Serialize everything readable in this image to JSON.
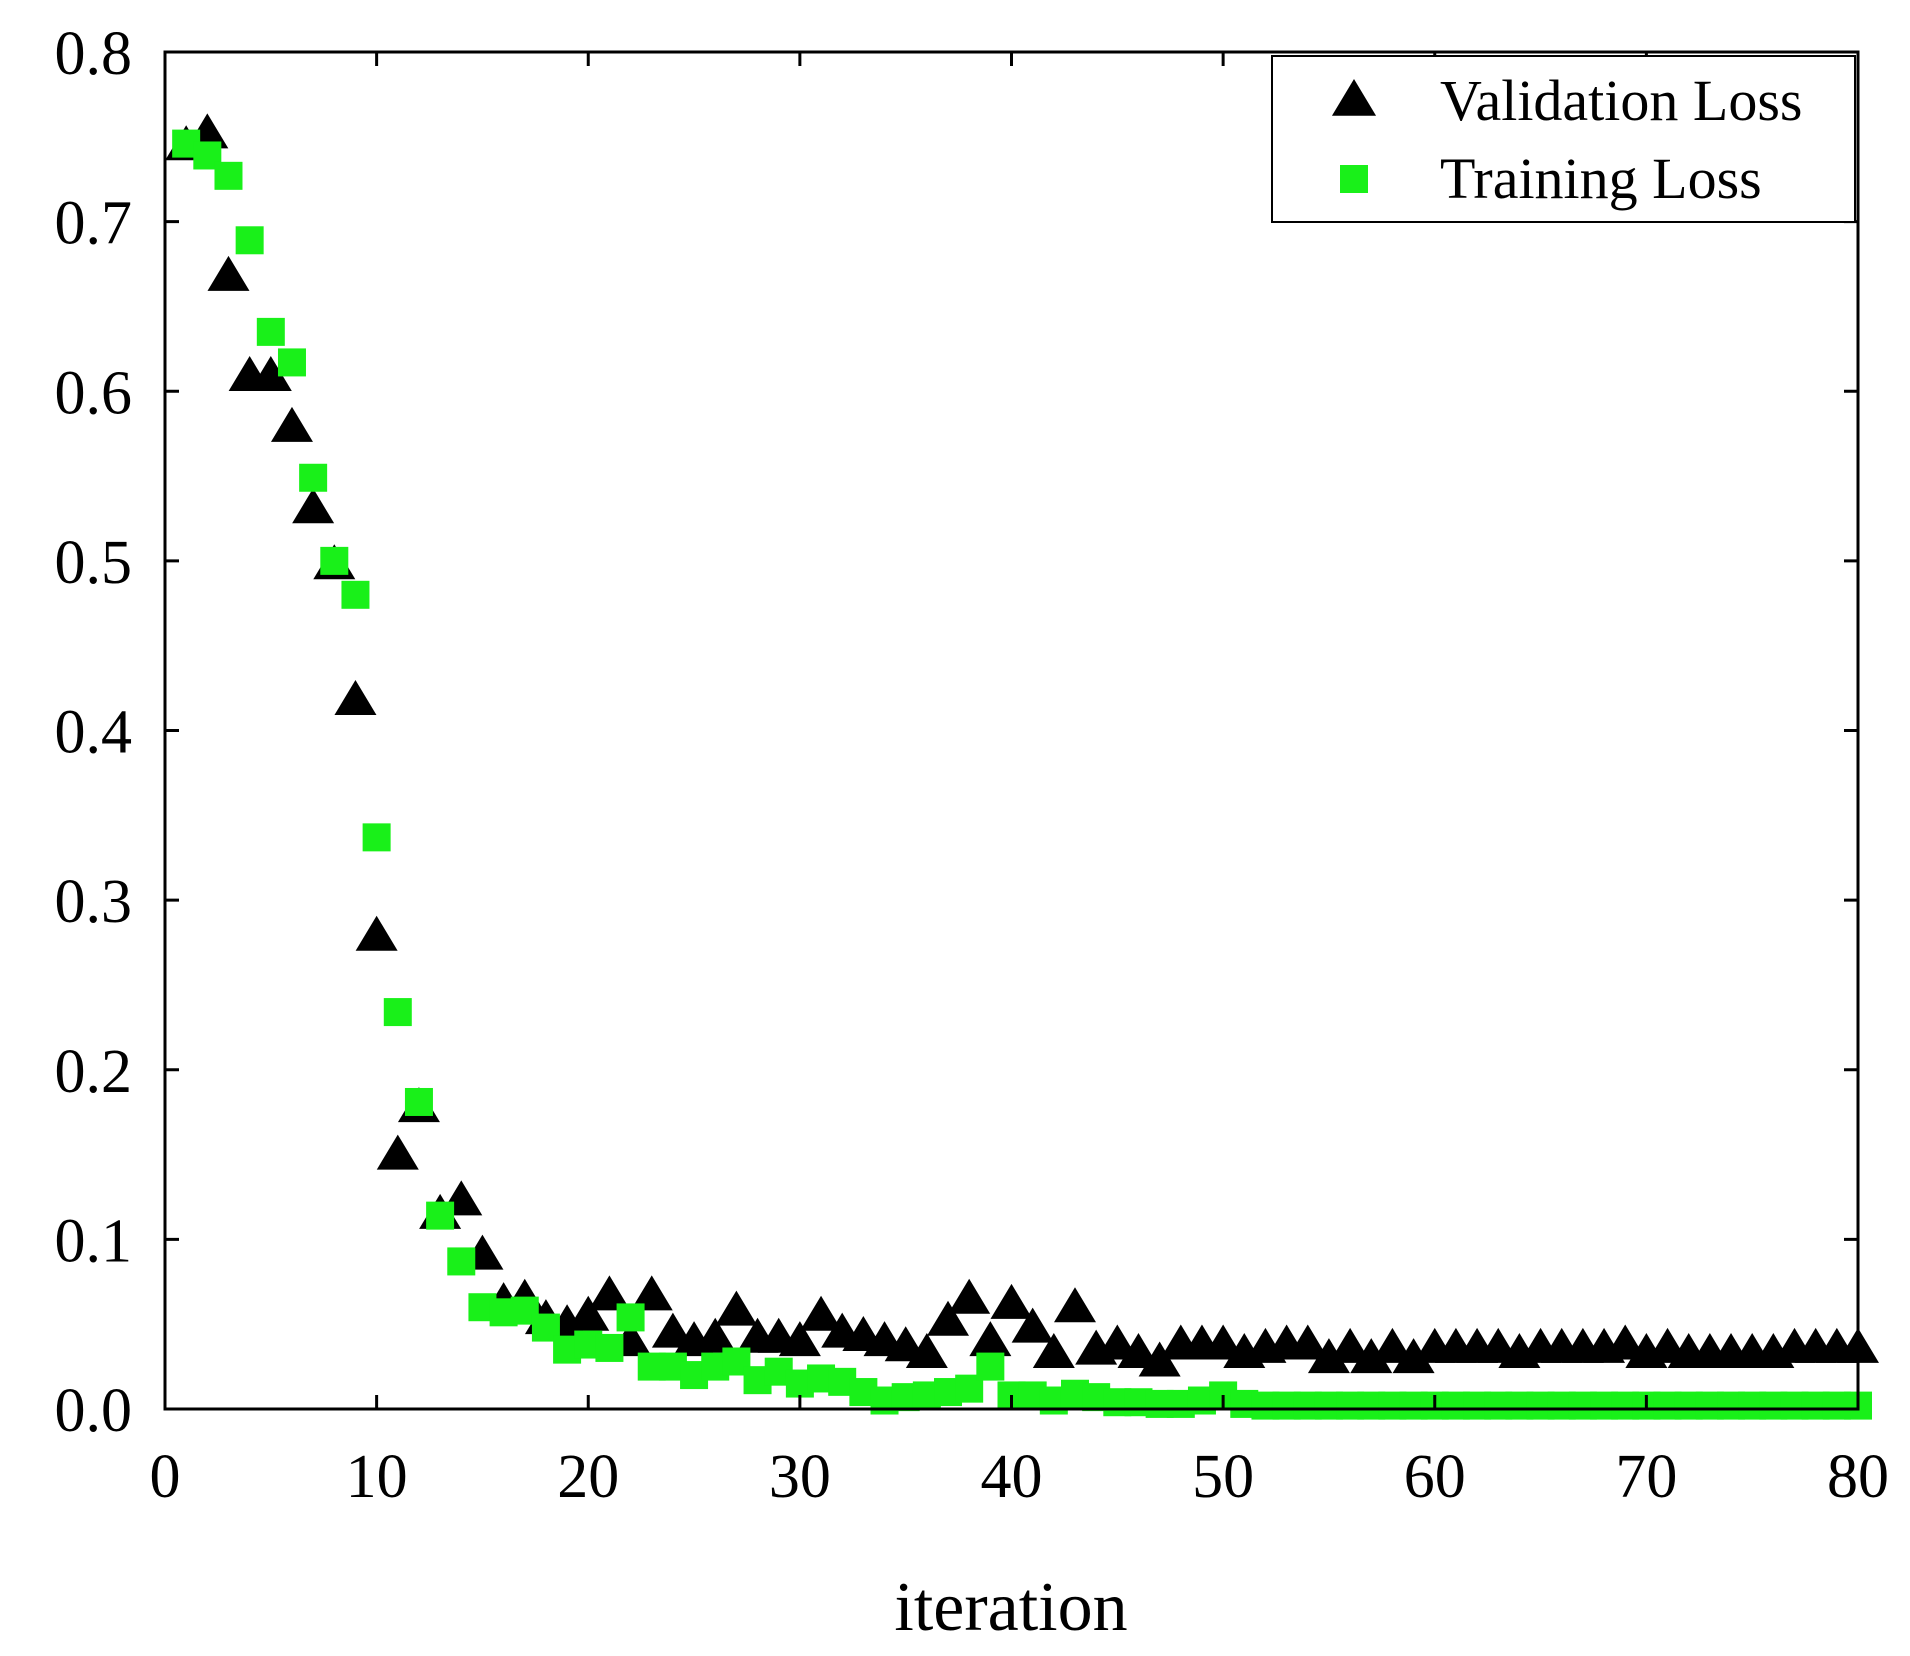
{
  "chart_data": {
    "type": "scatter",
    "title": "",
    "xlabel": "iteration",
    "ylabel": "",
    "xlim": [
      0,
      80
    ],
    "ylim": [
      0.0,
      0.8
    ],
    "x_ticks": [
      0,
      10,
      20,
      30,
      40,
      50,
      60,
      70,
      80
    ],
    "x_tick_labels": [
      "0",
      "10",
      "20",
      "30",
      "40",
      "50",
      "60",
      "70",
      "80"
    ],
    "y_ticks": [
      0.0,
      0.1,
      0.2,
      0.3,
      0.4,
      0.5,
      0.6,
      0.7,
      0.8
    ],
    "y_tick_labels": [
      "0.0",
      "0.1",
      "0.2",
      "0.3",
      "0.4",
      "0.5",
      "0.6",
      "0.7",
      "0.8"
    ],
    "grid": false,
    "legend_position": "top-right",
    "series": [
      {
        "name": "Validation Loss",
        "marker": "triangle",
        "color": "#000000",
        "x": [
          1,
          2,
          3,
          4,
          5,
          6,
          7,
          8,
          9,
          10,
          11,
          12,
          13,
          14,
          15,
          16,
          17,
          18,
          19,
          20,
          21,
          22,
          23,
          24,
          25,
          26,
          27,
          28,
          29,
          30,
          31,
          32,
          33,
          34,
          35,
          36,
          37,
          38,
          39,
          40,
          41,
          42,
          43,
          44,
          45,
          46,
          47,
          48,
          49,
          50,
          51,
          52,
          53,
          54,
          55,
          56,
          57,
          58,
          59,
          60,
          61,
          62,
          63,
          64,
          65,
          66,
          67,
          68,
          69,
          70,
          71,
          72,
          73,
          74,
          75,
          76,
          77,
          78,
          79,
          80
        ],
        "y": [
          0.745,
          0.752,
          0.668,
          0.609,
          0.609,
          0.579,
          0.531,
          0.498,
          0.418,
          0.279,
          0.15,
          0.178,
          0.115,
          0.123,
          0.091,
          0.063,
          0.065,
          0.053,
          0.05,
          0.055,
          0.067,
          0.04,
          0.067,
          0.045,
          0.04,
          0.042,
          0.058,
          0.042,
          0.042,
          0.04,
          0.055,
          0.045,
          0.043,
          0.04,
          0.037,
          0.033,
          0.052,
          0.065,
          0.04,
          0.062,
          0.048,
          0.033,
          0.06,
          0.035,
          0.038,
          0.033,
          0.028,
          0.038,
          0.038,
          0.038,
          0.033,
          0.036,
          0.038,
          0.038,
          0.03,
          0.036,
          0.03,
          0.036,
          0.03,
          0.036,
          0.036,
          0.036,
          0.036,
          0.033,
          0.036,
          0.036,
          0.036,
          0.036,
          0.038,
          0.033,
          0.036,
          0.033,
          0.033,
          0.033,
          0.033,
          0.033,
          0.036,
          0.036,
          0.036,
          0.036
        ]
      },
      {
        "name": "Training Loss",
        "marker": "square",
        "color": "#19f019",
        "x": [
          1,
          2,
          3,
          4,
          5,
          6,
          7,
          8,
          9,
          10,
          11,
          12,
          13,
          14,
          15,
          16,
          17,
          18,
          19,
          20,
          21,
          22,
          23,
          24,
          25,
          26,
          27,
          28,
          29,
          30,
          31,
          32,
          33,
          34,
          35,
          36,
          37,
          38,
          39,
          40,
          41,
          42,
          43,
          44,
          45,
          46,
          47,
          48,
          49,
          50,
          51,
          52,
          53,
          54,
          55,
          56,
          57,
          58,
          59,
          60,
          61,
          62,
          63,
          64,
          65,
          66,
          67,
          68,
          69,
          70,
          71,
          72,
          73,
          74,
          75,
          76,
          77,
          78,
          79,
          80
        ],
        "y": [
          0.746,
          0.739,
          0.727,
          0.689,
          0.635,
          0.617,
          0.549,
          0.5,
          0.48,
          0.337,
          0.234,
          0.181,
          0.114,
          0.087,
          0.06,
          0.057,
          0.058,
          0.048,
          0.035,
          0.038,
          0.036,
          0.054,
          0.025,
          0.025,
          0.02,
          0.025,
          0.028,
          0.017,
          0.022,
          0.015,
          0.018,
          0.016,
          0.01,
          0.005,
          0.007,
          0.008,
          0.01,
          0.012,
          0.025,
          0.008,
          0.008,
          0.005,
          0.009,
          0.007,
          0.004,
          0.004,
          0.003,
          0.003,
          0.005,
          0.008,
          0.003,
          0.002,
          0.002,
          0.002,
          0.002,
          0.002,
          0.002,
          0.002,
          0.002,
          0.002,
          0.002,
          0.002,
          0.002,
          0.002,
          0.002,
          0.002,
          0.002,
          0.002,
          0.002,
          0.002,
          0.002,
          0.002,
          0.002,
          0.002,
          0.002,
          0.002,
          0.002,
          0.002,
          0.002,
          0.002
        ]
      }
    ]
  }
}
